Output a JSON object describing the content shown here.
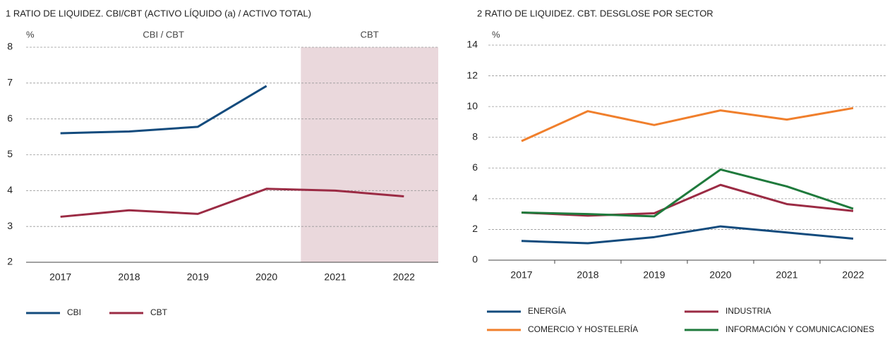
{
  "chart_data": [
    {
      "type": "line",
      "title": "1  RATIO DE LIQUIDEZ. CBI/CBT (ACTIVO LÍQUIDO (a) / ACTIVO TOTAL)",
      "y_unit": "%",
      "annotations": [
        "CBI / CBT",
        "CBT"
      ],
      "shaded_region": {
        "from": "2021",
        "to": "2022",
        "color": "#ead8dc"
      },
      "categories": [
        "2017",
        "2018",
        "2019",
        "2020",
        "2021",
        "2022"
      ],
      "series": [
        {
          "name": "CBI",
          "color": "#134b7d",
          "values": [
            5.6,
            5.65,
            5.78,
            6.92,
            null,
            null
          ]
        },
        {
          "name": "CBT",
          "color": "#9b2b44",
          "values": [
            3.27,
            3.45,
            3.35,
            4.05,
            4.0,
            3.84
          ]
        }
      ],
      "ylim": [
        2,
        8
      ],
      "yticks": [
        2,
        3,
        4,
        5,
        6,
        7,
        8
      ],
      "grid": true
    },
    {
      "type": "line",
      "title": "2  RATIO DE LIQUIDEZ. CBT. DESGLOSE POR SECTOR",
      "y_unit": "%",
      "categories": [
        "2017",
        "2018",
        "2019",
        "2020",
        "2021",
        "2022"
      ],
      "series": [
        {
          "name": "ENERGÍA",
          "color": "#134b7d",
          "values": [
            1.25,
            1.1,
            1.5,
            2.2,
            1.8,
            1.4
          ]
        },
        {
          "name": "INDUSTRIA",
          "color": "#9b2b44",
          "values": [
            3.1,
            2.9,
            3.05,
            4.9,
            3.65,
            3.2
          ]
        },
        {
          "name": "COMERCIO Y HOSTELERÍA",
          "color": "#f07f2c",
          "values": [
            7.75,
            9.7,
            8.8,
            9.75,
            9.15,
            9.9
          ]
        },
        {
          "name": "INFORMACIÓN Y COMUNICACIONES",
          "color": "#1f7a3c",
          "values": [
            3.1,
            3.0,
            2.85,
            5.9,
            4.8,
            3.35
          ]
        }
      ],
      "ylim": [
        0,
        14
      ],
      "yticks": [
        0,
        2,
        4,
        6,
        8,
        10,
        12,
        14
      ],
      "grid": true
    }
  ]
}
